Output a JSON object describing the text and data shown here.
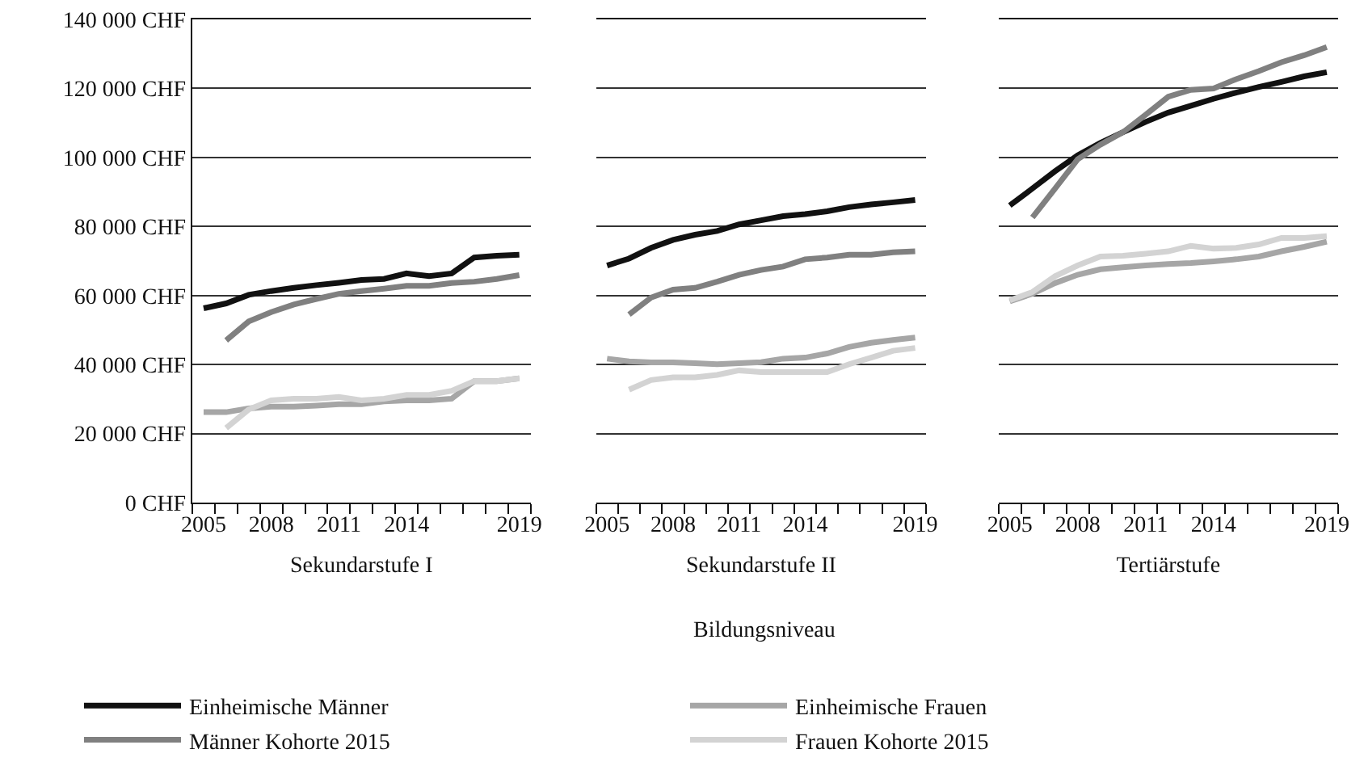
{
  "chart_data": [
    {
      "type": "line",
      "xlabel": "Sekundarstufe I",
      "categories": [
        "2005",
        null,
        null,
        "2008",
        null,
        null,
        "2011",
        null,
        null,
        "2014",
        null,
        null,
        null,
        null,
        "2019"
      ],
      "ylim": [
        0,
        140000
      ],
      "yticks": [
        {
          "value": 0,
          "label": "0 CHF"
        },
        {
          "value": 20000,
          "label": "20 000 CHF"
        },
        {
          "value": 40000,
          "label": "40 000 CHF"
        },
        {
          "value": 60000,
          "label": "60 000 CHF"
        },
        {
          "value": 80000,
          "label": "80 000 CHF"
        },
        {
          "value": 100000,
          "label": "100 000 CHF"
        },
        {
          "value": 120000,
          "label": "120 000 CHF"
        },
        {
          "value": 140000,
          "label": "140 000 CHF"
        }
      ],
      "grid": "y",
      "legend": "bottom",
      "marker": "none",
      "line_style": "solid",
      "series": [
        {
          "name": "Einheimische Männer",
          "color": "#111111",
          "values": [
            56300,
            57700,
            60200,
            61300,
            62200,
            63000,
            63700,
            64500,
            64800,
            66400,
            65600,
            66400,
            71000,
            71500,
            71800
          ]
        },
        {
          "name": "Einheimische Frauen",
          "color": "#a6a6a6",
          "values": [
            26200,
            26200,
            27300,
            27800,
            27800,
            28100,
            28500,
            28500,
            29300,
            29600,
            29600,
            30100,
            35200,
            35200,
            36000
          ]
        },
        {
          "name": "Männer Kohorte 2015",
          "color": "#808080",
          "values": [
            null,
            47000,
            52500,
            55200,
            57400,
            59000,
            60500,
            61300,
            62000,
            62800,
            62800,
            63600,
            64000,
            64800,
            65900
          ]
        },
        {
          "name": "Frauen Kohorte 2015",
          "color": "#d3d3d3",
          "values": [
            null,
            21600,
            27000,
            29600,
            30100,
            30100,
            30600,
            29600,
            30100,
            31200,
            31200,
            32400,
            35200,
            35200,
            36000
          ]
        }
      ]
    },
    {
      "type": "line",
      "xlabel": "Sekundarstufe II",
      "categories": [
        "2005",
        null,
        null,
        "2008",
        null,
        null,
        "2011",
        null,
        null,
        "2014",
        null,
        null,
        null,
        null,
        "2019"
      ],
      "ylim": [
        0,
        140000
      ],
      "yticks": [
        {
          "value": 0,
          "label": null
        },
        {
          "value": 20000,
          "label": null
        },
        {
          "value": 40000,
          "label": null
        },
        {
          "value": 60000,
          "label": null
        },
        {
          "value": 80000,
          "label": null
        },
        {
          "value": 100000,
          "label": null
        },
        {
          "value": 120000,
          "label": null
        },
        {
          "value": 140000,
          "label": null
        }
      ],
      "tick_labels": "x",
      "grid": "y",
      "marker": "none",
      "line_style": "solid",
      "annotations": [
        "Bildungsniveau"
      ],
      "series": [
        {
          "color": "#111111",
          "values": [
            68700,
            70700,
            73800,
            76100,
            77600,
            78700,
            80600,
            81800,
            83000,
            83600,
            84400,
            85600,
            86400,
            87000,
            87700
          ]
        },
        {
          "color": "#a6a6a6",
          "values": [
            41700,
            40900,
            40600,
            40600,
            40400,
            40100,
            40400,
            40700,
            41700,
            42000,
            43200,
            45100,
            46300,
            47100,
            47800
          ]
        },
        {
          "color": "#808080",
          "values": [
            null,
            54500,
            59400,
            61700,
            62200,
            64000,
            66000,
            67400,
            68400,
            70500,
            71000,
            71800,
            71800,
            72500,
            72800
          ]
        },
        {
          "color": "#d3d3d3",
          "values": [
            null,
            32700,
            35500,
            36300,
            36300,
            37000,
            38300,
            37800,
            37800,
            37800,
            37800,
            40100,
            42000,
            44000,
            44800
          ]
        }
      ]
    },
    {
      "type": "line",
      "xlabel": "Tertiärstufe",
      "categories": [
        "2005",
        null,
        null,
        "2008",
        null,
        null,
        "2011",
        null,
        null,
        "2014",
        null,
        null,
        null,
        null,
        "2019"
      ],
      "ylim": [
        0,
        140000
      ],
      "yticks": [
        {
          "value": 0,
          "label": null
        },
        {
          "value": 20000,
          "label": null
        },
        {
          "value": 40000,
          "label": null
        },
        {
          "value": 60000,
          "label": null
        },
        {
          "value": 80000,
          "label": null
        },
        {
          "value": 100000,
          "label": null
        },
        {
          "value": 120000,
          "label": null
        },
        {
          "value": 140000,
          "label": null
        }
      ],
      "tick_labels": "x",
      "grid": "y",
      "marker": "none",
      "line_style": "solid",
      "series": [
        {
          "color": "#111111",
          "values": [
            86100,
            91000,
            96000,
            100600,
            104200,
            107300,
            110300,
            113000,
            115000,
            117000,
            118800,
            120400,
            121900,
            123500,
            124700
          ]
        },
        {
          "color": "#a6a6a6",
          "values": [
            58300,
            60500,
            63600,
            66000,
            67600,
            68200,
            68700,
            69100,
            69400,
            69900,
            70500,
            71300,
            72800,
            74100,
            75600
          ]
        },
        {
          "color": "#808080",
          "values": [
            null,
            82600,
            91000,
            99500,
            103700,
            107300,
            112400,
            117600,
            119600,
            120000,
            122700,
            125000,
            127600,
            129600,
            132000
          ]
        },
        {
          "color": "#d3d3d3",
          "values": [
            58600,
            61000,
            65600,
            68700,
            71300,
            71500,
            72100,
            72800,
            74400,
            73600,
            73800,
            74800,
            76700,
            76700,
            77200
          ]
        }
      ]
    }
  ]
}
